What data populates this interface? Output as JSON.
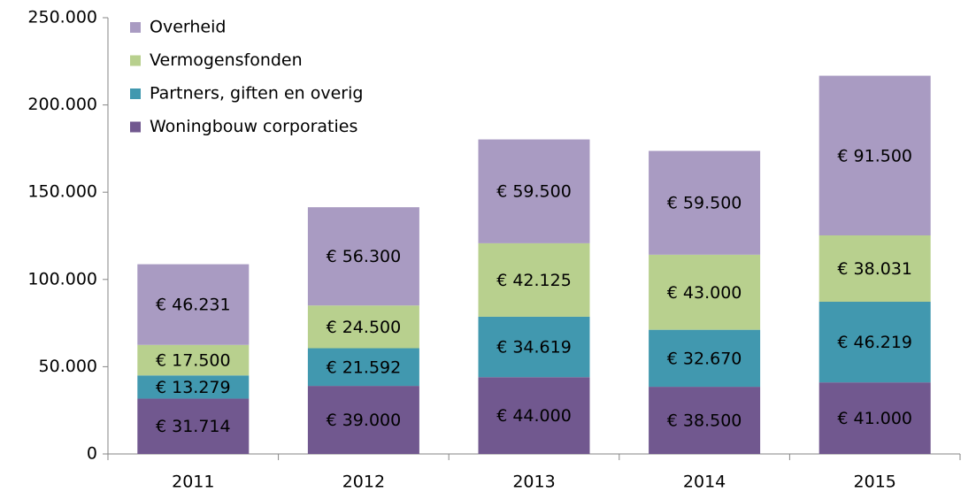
{
  "chart_data": {
    "type": "stacked_bar",
    "categories": [
      "2011",
      "2012",
      "2013",
      "2014",
      "2015"
    ],
    "series": [
      {
        "name": "Woningbouw corporaties",
        "color": "#71588f",
        "values": [
          31714,
          39000,
          44000,
          38500,
          41000
        ],
        "value_labels": [
          "€ 31.714",
          "€ 39.000",
          "€ 44.000",
          "€ 38.500",
          "€ 41.000"
        ]
      },
      {
        "name": "Partners, giften en overig",
        "color": "#4198af",
        "values": [
          13279,
          21592,
          34619,
          32670,
          46219
        ],
        "value_labels": [
          "€ 13.279",
          "€ 21.592",
          "€ 34.619",
          "€ 32.670",
          "€ 46.219"
        ]
      },
      {
        "name": "Vermogensfonden",
        "color": "#b8d08e",
        "values": [
          17500,
          24500,
          42125,
          43000,
          38031
        ],
        "value_labels": [
          "€ 17.500",
          "€ 24.500",
          "€ 42.125",
          "€ 43.000",
          "€ 38.031"
        ]
      },
      {
        "name": "Overheid",
        "color": "#a99bc2",
        "values": [
          46231,
          56300,
          59500,
          59500,
          91500
        ],
        "value_labels": [
          "€ 46.231",
          "€ 56.300",
          "€ 59.500",
          "€ 59.500",
          "€ 91.500"
        ]
      }
    ],
    "ylim": [
      0,
      250000
    ],
    "yticks": [
      0,
      {
        "value": 50000,
        "label": "50.000"
      },
      {
        "value": 100000,
        "label": "100.000"
      },
      {
        "value": 150000,
        "label": "150.000"
      },
      {
        "value": 200000,
        "label": "200.000"
      },
      {
        "value": 250000,
        "label": "250.000"
      }
    ],
    "legend": "top-left"
  }
}
